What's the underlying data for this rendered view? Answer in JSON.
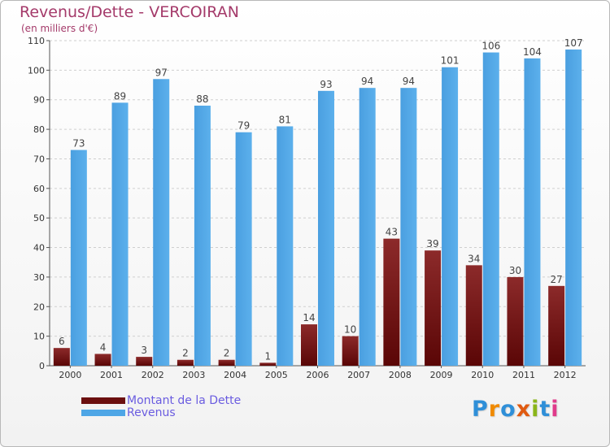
{
  "header": {
    "title": "Revenus/Dette - VERCOIRAN",
    "subtitle": "(en milliers d'€)"
  },
  "colors": {
    "dette": "#7a1a1a",
    "revenus": "#4ea6e6",
    "title": "#a43a6a",
    "legend_text": "#6a5ce0"
  },
  "legend": {
    "items": [
      {
        "label": "Montant de la Dette",
        "color": "#6b0f0f"
      },
      {
        "label": "Revenus",
        "color": "#4ea6e6"
      }
    ]
  },
  "logo": {
    "text": "Proxiti",
    "letter_colors": [
      "#2f8fd8",
      "#f08a00",
      "#2f8fd8",
      "#e05a10",
      "#8ab51a",
      "#2f8fd8",
      "#e03a8a"
    ]
  },
  "chart_data": {
    "type": "bar",
    "title": "Revenus/Dette - VERCOIRAN",
    "ylabel": "(en milliers d'€)",
    "xlabel": "",
    "ylim": [
      0,
      110
    ],
    "yticks": [
      0,
      10,
      20,
      30,
      40,
      50,
      60,
      70,
      80,
      90,
      100,
      110
    ],
    "categories": [
      "2000",
      "2001",
      "2002",
      "2003",
      "2004",
      "2005",
      "2006",
      "2007",
      "2008",
      "2009",
      "2010",
      "2011",
      "2012"
    ],
    "series": [
      {
        "name": "Montant de la Dette",
        "values": [
          6,
          4,
          3,
          2,
          2,
          1,
          14,
          10,
          43,
          39,
          34,
          30,
          27
        ]
      },
      {
        "name": "Revenus",
        "values": [
          73,
          89,
          97,
          88,
          79,
          81,
          93,
          94,
          94,
          101,
          106,
          104,
          107
        ]
      }
    ],
    "grid": true,
    "legend_position": "bottom-left"
  }
}
